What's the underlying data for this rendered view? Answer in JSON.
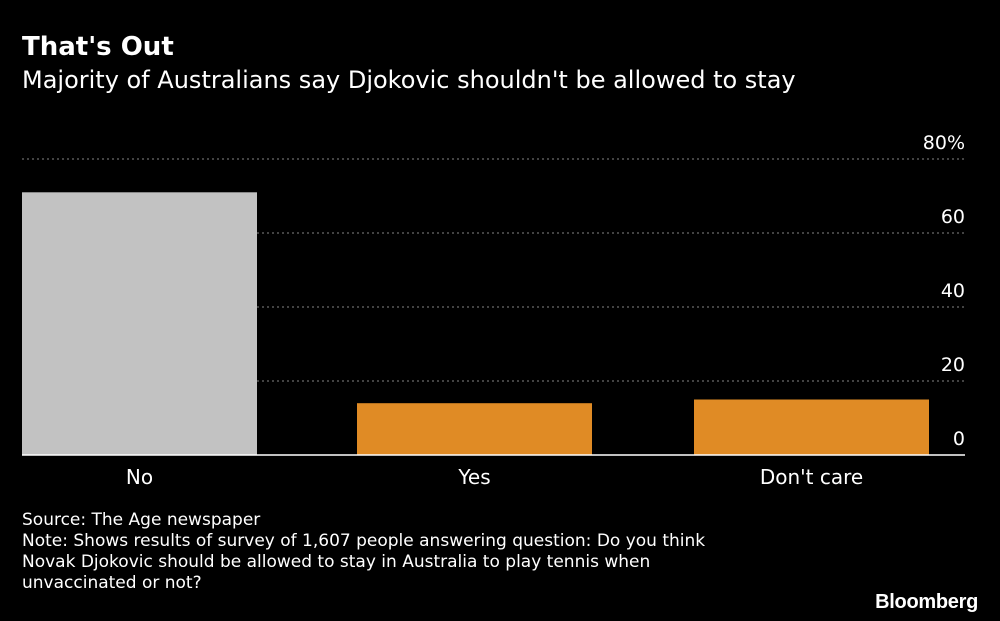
{
  "title": "That's Out",
  "subtitle": "Majority of Australians say Djokovic shouldn't be allowed to stay",
  "chart_data": {
    "type": "bar",
    "categories": [
      "No",
      "Yes",
      "Don't care"
    ],
    "values": [
      71,
      14,
      15
    ],
    "ylim": [
      0,
      80
    ],
    "yticks": [
      0,
      20,
      40,
      60,
      80
    ],
    "ytick_labels": [
      "0",
      "20",
      "40",
      "60",
      "80%"
    ],
    "y_axis_side": "right",
    "grid": true,
    "bar_colors": [
      "#c2c2c2",
      "#e08b25",
      "#e08b25"
    ],
    "gridline_color": "#6b6b6b",
    "axis_color": "#ffffff",
    "xlabel": "",
    "ylabel": ""
  },
  "footer": {
    "source": "Source: The Age newspaper",
    "note_lines": [
      "Note: Shows results of survey of 1,607 people answering question: Do you think",
      "Novak Djokovic should be allowed to stay in Australia to play tennis when",
      "unvaccinated or not?"
    ]
  },
  "brand": "Bloomberg"
}
